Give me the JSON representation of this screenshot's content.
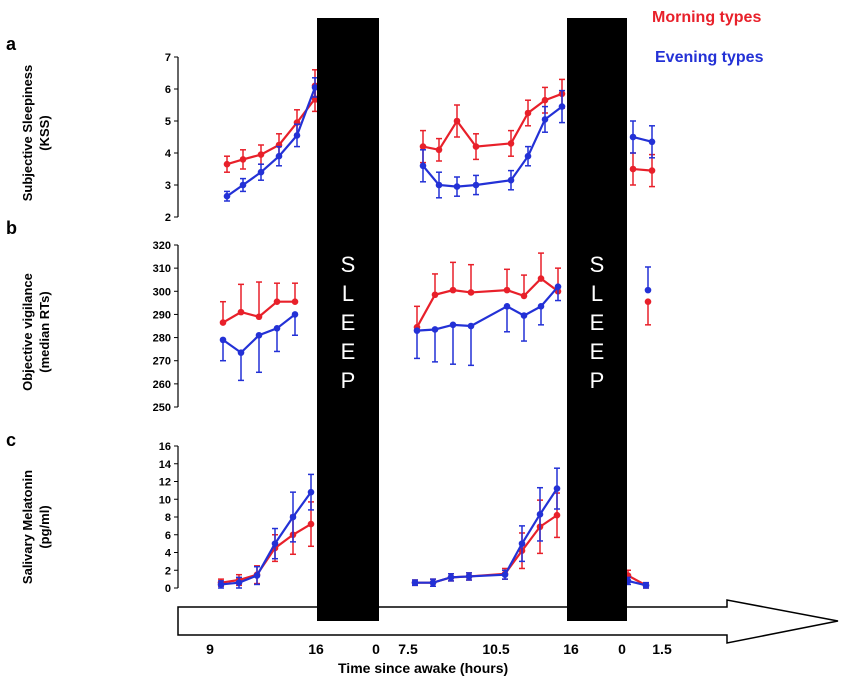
{
  "colors": {
    "morning": "#e8202a",
    "evening": "#2331d6",
    "sleep_bar": "#000000",
    "sleep_text": "#ffffff"
  },
  "legend": {
    "morning": "Morning types",
    "evening": "Evening types"
  },
  "panel_letters": {
    "a": "a",
    "b": "b",
    "c": "c"
  },
  "sleep_text": [
    "S",
    "L",
    "E",
    "E",
    "P"
  ],
  "x_axis": {
    "title": "Time since awake (hours)",
    "tick_labels": [
      "9",
      "16",
      "0",
      "7.5",
      "10.5",
      "16",
      "0",
      "1.5"
    ]
  },
  "chart_data": [
    {
      "type": "line",
      "panel": "a",
      "ylabel_lines": [
        "Subjective Sleepiness",
        "(KSS)"
      ],
      "ylim": [
        2,
        7
      ],
      "yticks": [
        2,
        3,
        4,
        5,
        6,
        7
      ],
      "segments": [
        {
          "segment": 1,
          "x": [
            9,
            10,
            11,
            12,
            13,
            14,
            15,
            16
          ],
          "morning": {
            "y": [
              3.65,
              3.8,
              3.95,
              4.25,
              4.95,
              5.7,
              6.1
            ],
            "err": [
              0.25,
              0.3,
              0.3,
              0.35,
              0.4,
              0.4,
              0.5
            ],
            "x": [
              9.5,
              10.3,
              11.1,
              11.9,
              12.7,
              13.6,
              14.5
            ]
          },
          "evening": {
            "y": [
              2.65,
              3.0,
              3.4,
              3.9,
              4.55,
              6.05
            ],
            "err": [
              0.15,
              0.2,
              0.25,
              0.3,
              0.35,
              0.3
            ],
            "x": [
              9.5,
              10.3,
              11.1,
              11.9,
              12.7,
              14.5
            ]
          }
        },
        {
          "segment": 2,
          "morning": {
            "y": [
              4.2,
              4.1,
              5.0,
              4.2,
              4.3,
              5.25,
              5.65,
              5.85
            ],
            "err": [
              0.5,
              0.35,
              0.5,
              0.4,
              0.4,
              0.4,
              0.4,
              0.45
            ]
          },
          "evening": {
            "y": [
              3.6,
              3.0,
              2.95,
              3.0,
              3.15,
              3.9,
              5.05,
              5.45
            ],
            "err": [
              0.5,
              0.4,
              0.3,
              0.3,
              0.3,
              0.3,
              0.4,
              0.5
            ]
          }
        },
        {
          "segment": 3,
          "morning": {
            "y": [
              3.5,
              3.45
            ],
            "err": [
              0.5,
              0.5
            ]
          },
          "evening": {
            "y": [
              4.5,
              4.35
            ],
            "err": [
              0.5,
              0.5
            ]
          }
        }
      ]
    },
    {
      "type": "line",
      "panel": "b",
      "ylabel_lines": [
        "Objective vigilance",
        "(median RTs)"
      ],
      "ylim": [
        250,
        320
      ],
      "yticks": [
        250,
        260,
        270,
        280,
        290,
        300,
        310,
        320
      ],
      "segments": [
        {
          "segment": 1,
          "morning": {
            "y": [
              286.5,
              291,
              289,
              295.5,
              295.5
            ],
            "err": [
              9,
              12,
              15,
              8,
              8
            ]
          },
          "evening": {
            "y": [
              279,
              273.5,
              281,
              284,
              290
            ],
            "err": [
              9,
              12,
              16,
              10,
              9
            ]
          }
        },
        {
          "segment": 2,
          "morning": {
            "y": [
              284.5,
              298.5,
              300.5,
              299.5,
              300.5,
              298,
              305.5,
              300
            ],
            "err": [
              9,
              9,
              12,
              12,
              9,
              9,
              11,
              10
            ]
          },
          "evening": {
            "y": [
              283,
              283.5,
              285.5,
              285,
              293.5,
              289.5,
              293.5,
              302
            ],
            "err": [
              12,
              14,
              17,
              17,
              11,
              11,
              8,
              6
            ]
          }
        },
        {
          "segment": 3,
          "morning": {
            "y": [
              295.5
            ],
            "err": [
              10
            ]
          },
          "evening": {
            "y": [
              300.5
            ],
            "err": [
              10
            ]
          }
        }
      ]
    },
    {
      "type": "line",
      "panel": "c",
      "ylabel_lines": [
        "Salivary Melatonin",
        "(pg/ml)"
      ],
      "ylim": [
        0,
        16
      ],
      "yticks": [
        0,
        2,
        4,
        6,
        8,
        10,
        12,
        14,
        16
      ],
      "segments": [
        {
          "segment": 1,
          "morning": {
            "y": [
              0.6,
              0.9,
              1.5,
              4.5,
              6.0,
              7.2
            ],
            "err": [
              0.4,
              0.6,
              1.0,
              1.5,
              2.2,
              2.5
            ]
          },
          "evening": {
            "y": [
              0.4,
              0.6,
              1.4,
              5.0,
              8.0,
              10.8
            ],
            "err": [
              0.4,
              0.6,
              1.0,
              1.7,
              2.8,
              2.0
            ]
          }
        },
        {
          "segment": 2,
          "morning": {
            "y": [
              0.6,
              0.6,
              1.2,
              1.3,
              1.6,
              4.2,
              6.9,
              8.2
            ],
            "err": [
              0.3,
              0.4,
              0.4,
              0.4,
              0.6,
              2.0,
              3.0,
              2.5
            ]
          },
          "evening": {
            "y": [
              0.6,
              0.6,
              1.2,
              1.3,
              1.5,
              5.0,
              8.3,
              11.2
            ],
            "err": [
              0.3,
              0.4,
              0.4,
              0.4,
              0.5,
              2.0,
              3.0,
              2.3
            ]
          }
        },
        {
          "segment": 3,
          "morning": {
            "y": [
              1.4,
              0.3
            ],
            "err": [
              0.6,
              0.3
            ]
          },
          "evening": {
            "y": [
              0.8,
              0.3
            ],
            "err": [
              0.4,
              0.3
            ]
          }
        }
      ]
    }
  ]
}
